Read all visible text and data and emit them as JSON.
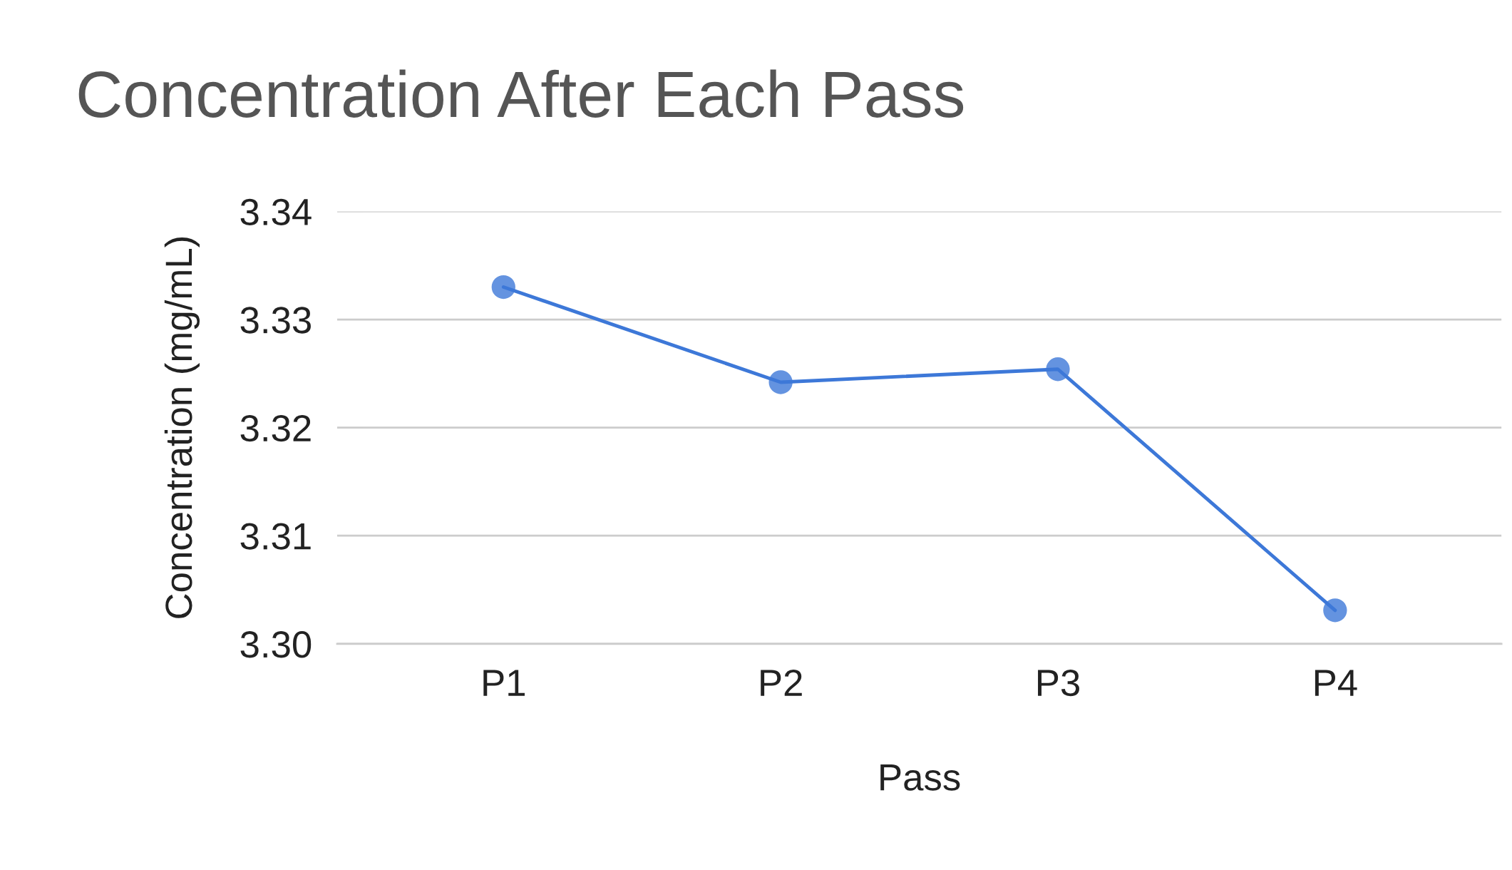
{
  "chart_data": {
    "type": "line",
    "title": "Concentration After Each Pass",
    "xlabel": "Pass",
    "ylabel": "Concentration (mg/mL)",
    "categories": [
      "P1",
      "P2",
      "P3",
      "P4"
    ],
    "series": [
      {
        "color": "#3d78d8",
        "values": [
          3.333,
          3.3242,
          3.3254,
          3.3031
        ]
      }
    ],
    "ylim": [
      3.3,
      3.34
    ],
    "yticks": [
      {
        "value": 3.3,
        "label": "3.30"
      },
      3.31,
      3.32,
      3.33,
      3.34
    ],
    "grid": "y",
    "marker": "circle",
    "line_style": "solid",
    "legend": false
  }
}
